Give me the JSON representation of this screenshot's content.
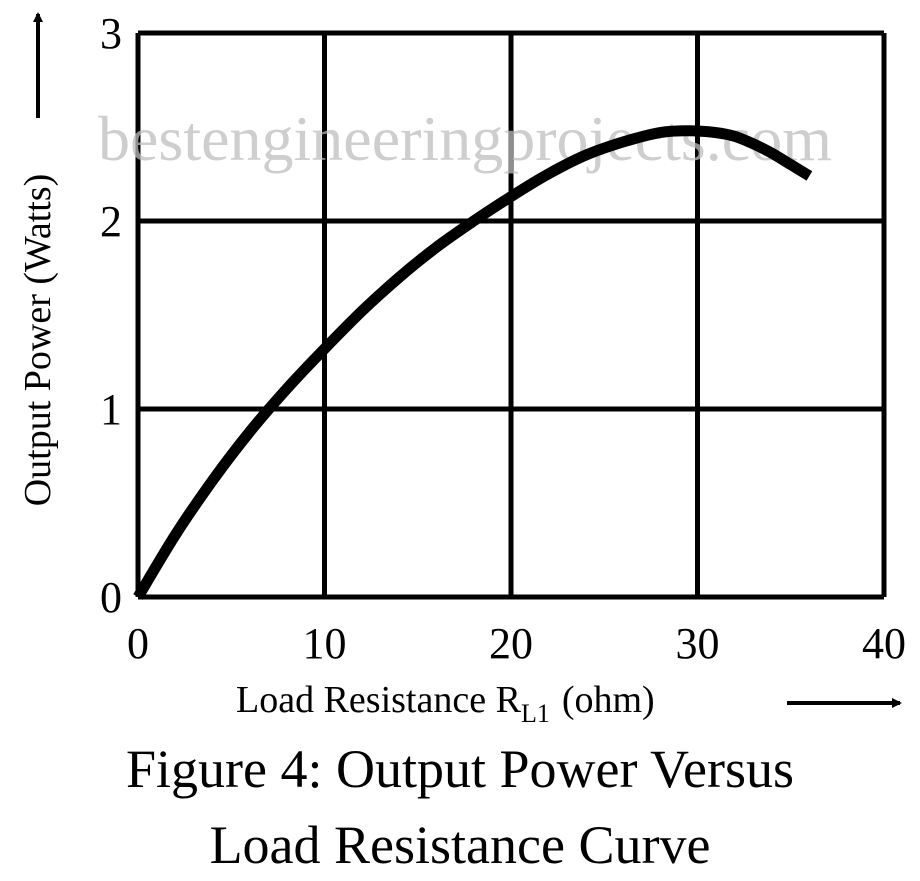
{
  "watermark": "bestengineeringprojects.com",
  "figure_caption": {
    "line1": "Figure 4: Output Power Versus",
    "line2": "Load Resistance Curve"
  },
  "chart_data": {
    "type": "line",
    "xlabel": "Load Resistance R",
    "xlabel_subscript": "L1",
    "xlabel_unit": "(ohm)",
    "ylabel": "Output Power (Watts)",
    "xlim": [
      0,
      40
    ],
    "ylim": [
      0,
      3
    ],
    "xticks": [
      "0",
      "10",
      "20",
      "30",
      "40"
    ],
    "yticks": [
      "0",
      "1",
      "2",
      "3"
    ],
    "grid": true,
    "series": [
      {
        "x": [
          0,
          2,
          4,
          6,
          8,
          10,
          12,
          14,
          16,
          18,
          20,
          22,
          24,
          26,
          28,
          29.5,
          31,
          32,
          33,
          34,
          35,
          36
        ],
        "y": [
          0,
          0.33,
          0.62,
          0.88,
          1.11,
          1.32,
          1.52,
          1.7,
          1.86,
          2.0,
          2.13,
          2.25,
          2.35,
          2.42,
          2.47,
          2.48,
          2.47,
          2.45,
          2.41,
          2.36,
          2.3,
          2.24
        ]
      }
    ]
  }
}
